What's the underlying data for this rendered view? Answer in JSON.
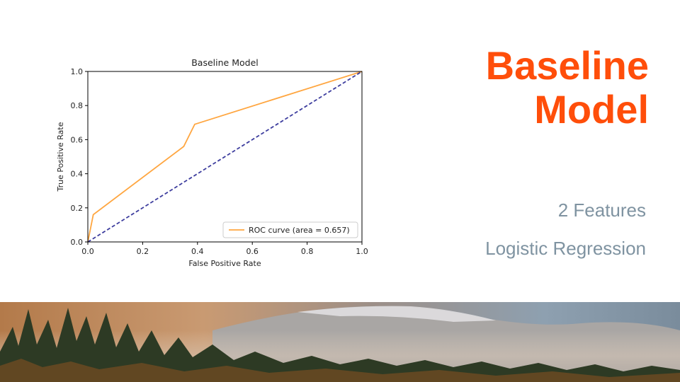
{
  "slide": {
    "title_line1": "Baseline",
    "title_line2": "Model",
    "subtitle1": "2 Features",
    "subtitle2": "Logistic Regression"
  },
  "colors": {
    "title": "#ff4e0a",
    "subtitle": "#7f93a1",
    "roc_curve": "#ffa640",
    "chance_line": "#3d3d9e"
  },
  "banner": {
    "description_icon": "forest-mountain-photo"
  },
  "chart_data": {
    "type": "line",
    "title": "Baseline Model",
    "xlabel": "False Positive Rate",
    "ylabel": "True Positive Rate",
    "xlim": [
      0.0,
      1.0
    ],
    "ylim": [
      0.0,
      1.0
    ],
    "xticks": [
      "0.0",
      "0.2",
      "0.4",
      "0.6",
      "0.8",
      "1.0"
    ],
    "yticks": [
      "0.0",
      "0.2",
      "0.4",
      "0.6",
      "0.8",
      "1.0"
    ],
    "grid": false,
    "legend_position": "bottom-right",
    "series": [
      {
        "name": "ROC curve (area = 0.657)",
        "style": "solid",
        "x": [
          0.0,
          0.02,
          0.35,
          0.39,
          1.0
        ],
        "y": [
          0.0,
          0.16,
          0.56,
          0.69,
          1.0
        ]
      },
      {
        "style": "dashed",
        "x": [
          0.0,
          1.0
        ],
        "y": [
          0.0,
          1.0
        ]
      }
    ]
  }
}
